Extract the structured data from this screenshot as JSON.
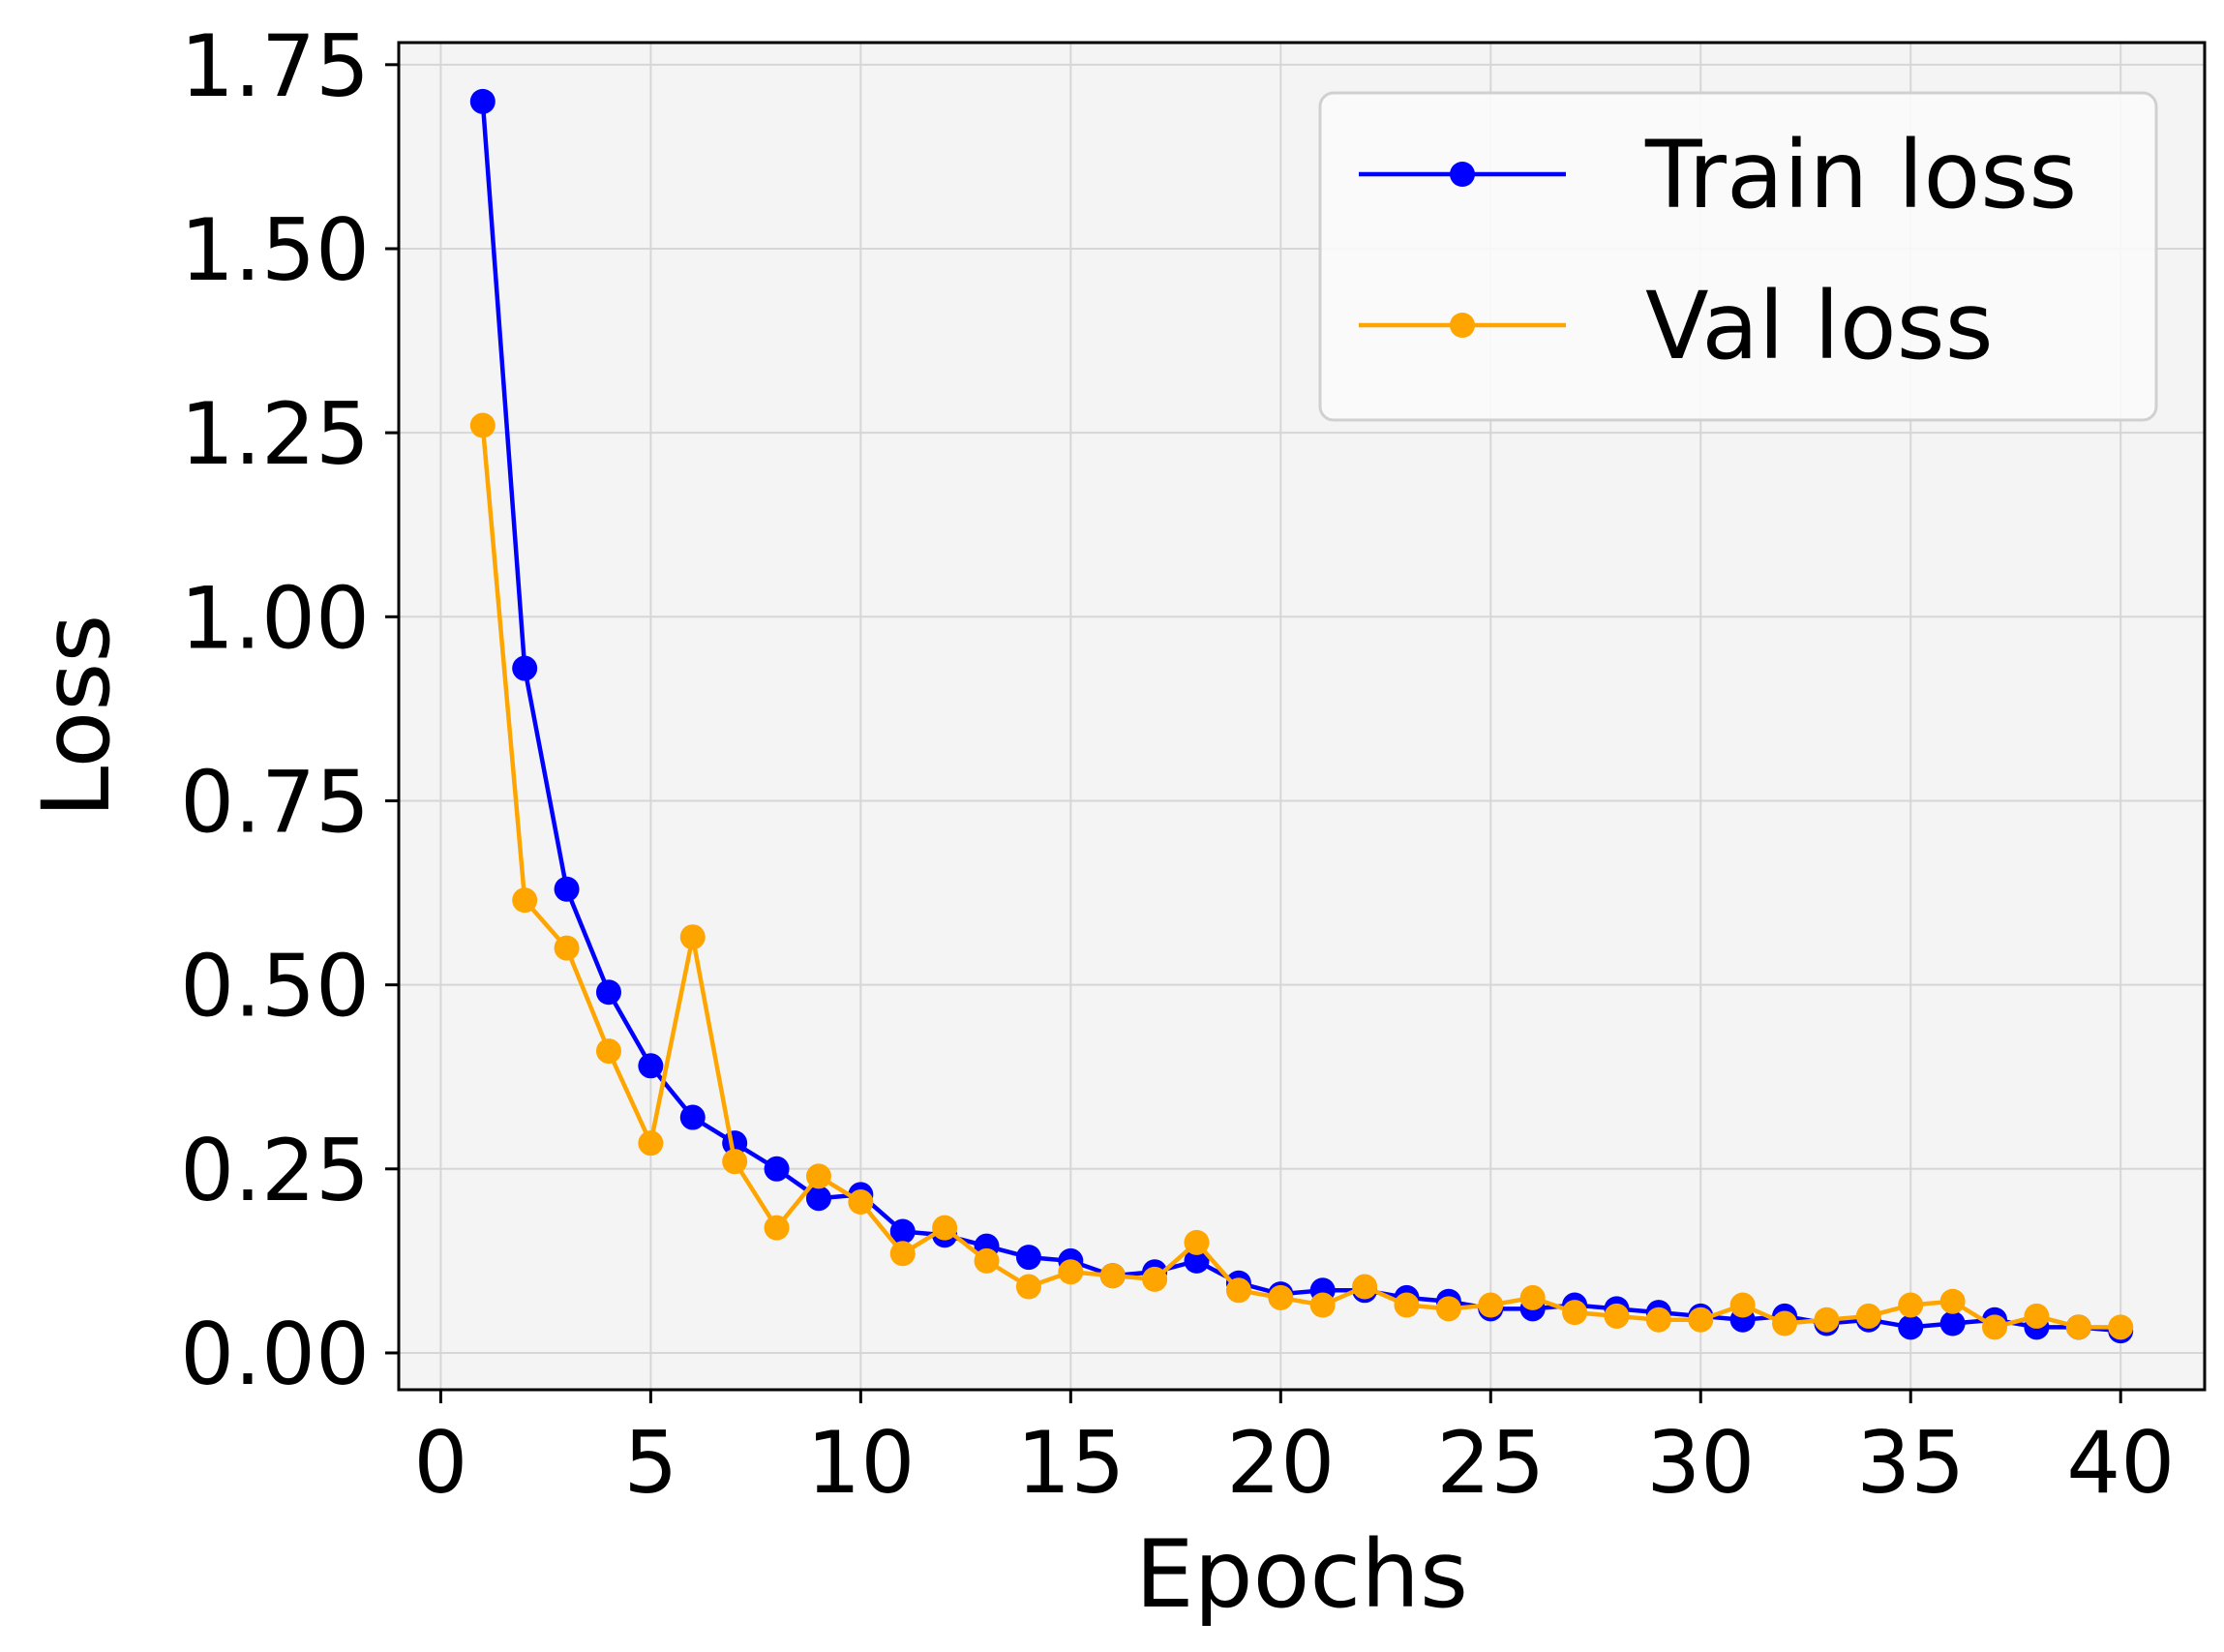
{
  "chart_data": {
    "type": "line",
    "xlabel": "Epochs",
    "ylabel": "Loss",
    "xlim": [
      -1,
      42
    ],
    "ylim": [
      -0.05,
      1.78
    ],
    "xticks": [
      0,
      5,
      10,
      15,
      20,
      25,
      30,
      35,
      40
    ],
    "yticks": [
      0.0,
      0.25,
      0.5,
      0.75,
      1.0,
      1.25,
      1.5,
      1.75
    ],
    "xtick_labels": [
      "0",
      "5",
      "10",
      "15",
      "20",
      "25",
      "30",
      "35",
      "40"
    ],
    "ytick_labels": [
      "0.00",
      "0.25",
      "0.50",
      "0.75",
      "1.00",
      "1.25",
      "1.50",
      "1.75"
    ],
    "grid": true,
    "legend_position": "top-right",
    "background": "#f4f4f4",
    "x": [
      1,
      2,
      3,
      4,
      5,
      6,
      7,
      8,
      9,
      10,
      11,
      12,
      13,
      14,
      15,
      16,
      17,
      18,
      19,
      20,
      21,
      22,
      23,
      24,
      25,
      26,
      27,
      28,
      29,
      30,
      31,
      32,
      33,
      34,
      35,
      36,
      37,
      38,
      39,
      40
    ],
    "series": [
      {
        "name": "Train loss",
        "color": "#0000ff",
        "values": [
          1.7,
          0.93,
          0.63,
          0.49,
          0.39,
          0.32,
          0.285,
          0.25,
          0.21,
          0.215,
          0.165,
          0.16,
          0.145,
          0.13,
          0.125,
          0.105,
          0.11,
          0.125,
          0.095,
          0.08,
          0.085,
          0.085,
          0.075,
          0.07,
          0.06,
          0.06,
          0.065,
          0.06,
          0.055,
          0.05,
          0.045,
          0.05,
          0.04,
          0.045,
          0.035,
          0.04,
          0.045,
          0.035,
          0.035,
          0.03
        ]
      },
      {
        "name": "Val loss",
        "color": "#ffa500",
        "values": [
          1.26,
          0.615,
          0.55,
          0.41,
          0.285,
          0.565,
          0.26,
          0.17,
          0.24,
          0.205,
          0.135,
          0.17,
          0.125,
          0.09,
          0.11,
          0.105,
          0.1,
          0.15,
          0.085,
          0.075,
          0.065,
          0.09,
          0.065,
          0.06,
          0.065,
          0.075,
          0.055,
          0.05,
          0.045,
          0.045,
          0.065,
          0.04,
          0.045,
          0.05,
          0.065,
          0.07,
          0.035,
          0.05,
          0.035,
          0.035
        ]
      }
    ]
  }
}
